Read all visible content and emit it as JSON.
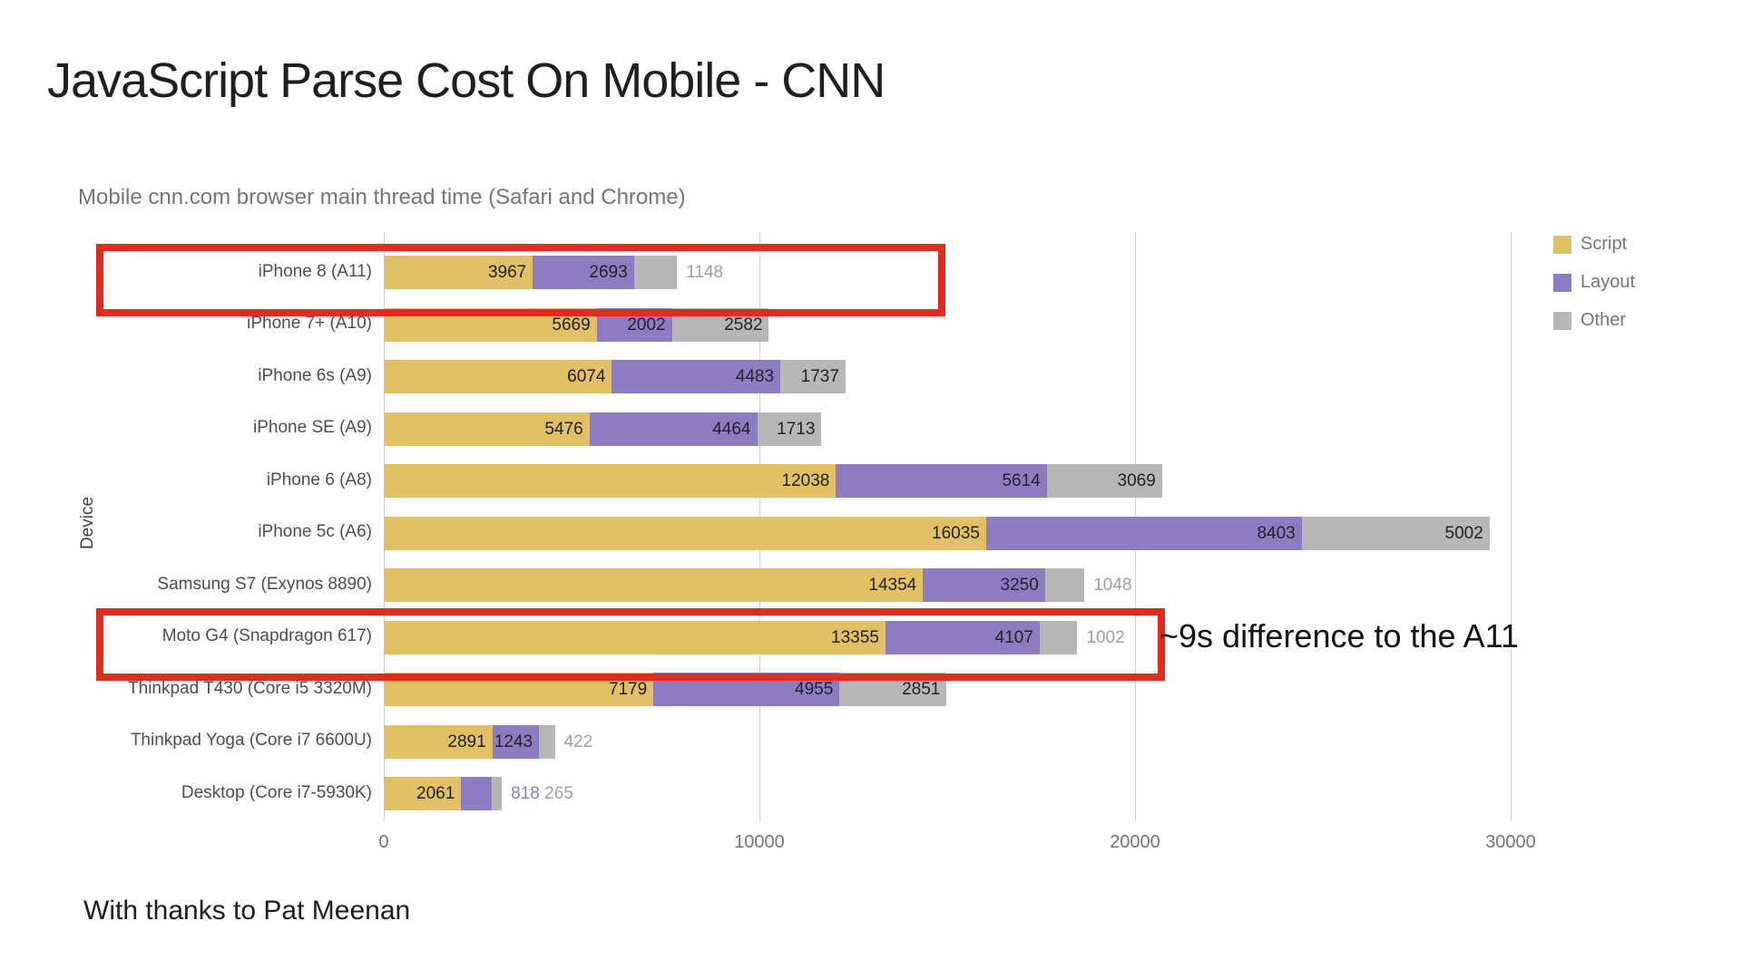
{
  "page": {
    "title": "JavaScript Parse Cost On Mobile - CNN",
    "footer": "With thanks to Pat Meenan"
  },
  "chart_data": {
    "type": "bar",
    "orientation": "horizontal",
    "stacked": true,
    "title": "Mobile cnn.com browser main thread time (Safari and Chrome)",
    "xlabel": "",
    "ylabel": "Device",
    "xlim": [
      0,
      33000
    ],
    "xticks": [
      0,
      10000,
      20000,
      30000
    ],
    "grid": true,
    "legend_position": "top-right",
    "categories": [
      "iPhone 8 (A11)",
      "iPhone 7+ (A10)",
      "iPhone 6s (A9)",
      "iPhone SE (A9)",
      "iPhone 6 (A8)",
      "iPhone 5c (A6)",
      "Samsung S7 (Exynos 8890)",
      "Moto G4 (Snapdragon 617)",
      "Thinkpad T430 (Core i5 3320M)",
      "Thinkpad Yoga (Core i7 6600U)",
      "Desktop (Core i7-5930K)"
    ],
    "series": [
      {
        "name": "Script",
        "color": "#e2c066",
        "values": [
          3967,
          5669,
          6074,
          5476,
          12038,
          16035,
          14354,
          13355,
          7179,
          2891,
          2061
        ]
      },
      {
        "name": "Layout",
        "color": "#8e7cc3",
        "values": [
          2693,
          2002,
          4483,
          4464,
          5614,
          8403,
          3250,
          4107,
          4955,
          1243,
          818
        ]
      },
      {
        "name": "Other",
        "color": "#b7b7b7",
        "values": [
          1148,
          2582,
          1737,
          1713,
          3069,
          5002,
          1048,
          1002,
          2851,
          422,
          265
        ]
      }
    ],
    "outside_label_color_other": "#9e9e9e",
    "inside_label_color": "#202124"
  },
  "annotations": {
    "highlight_color": "#e02b1d",
    "highlights": [
      {
        "device": "iPhone 8 (A11)",
        "label": ""
      },
      {
        "device": "Moto G4 (Snapdragon 617)",
        "label": "~9s difference to the A11"
      }
    ]
  }
}
